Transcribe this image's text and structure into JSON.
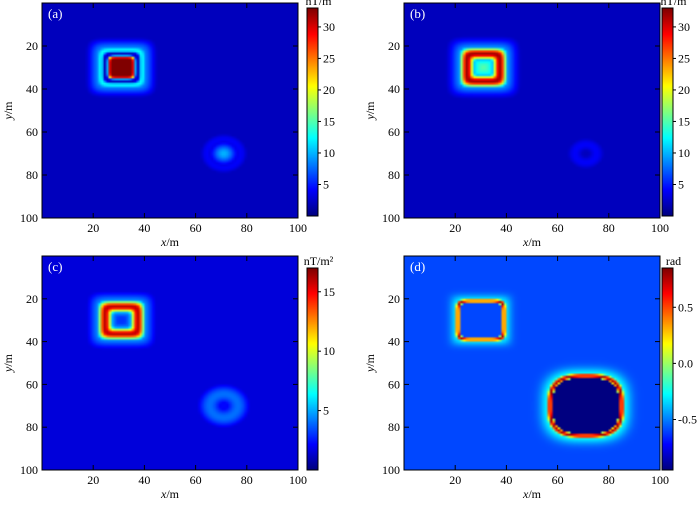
{
  "chart_data": [
    {
      "panel": "(a)",
      "type": "heatmap",
      "xlabel": "x/m",
      "ylabel": "y/m",
      "xlim": [
        0,
        100
      ],
      "ylim": [
        0,
        100
      ],
      "x_ticks": [
        "20",
        "40",
        "60",
        "80",
        "100"
      ],
      "y_ticks": [
        "20",
        "40",
        "60",
        "80",
        "100"
      ],
      "colorbar": {
        "unit": "nT/m",
        "min": 0,
        "max": 33,
        "ticks": [
          5,
          10,
          15,
          20,
          25,
          30
        ]
      },
      "background_value": 2,
      "anomalies": [
        {
          "kind": "filled_square_ring",
          "center_x": 31,
          "center_y": 30,
          "half_size": 8,
          "peak": 33,
          "inner_value": 33,
          "ring_value": 28
        },
        {
          "kind": "blob",
          "center_x": 71,
          "center_y": 70,
          "radius": 6,
          "peak": 10
        }
      ]
    },
    {
      "panel": "(b)",
      "type": "heatmap",
      "xlabel": "x/m",
      "ylabel": "y/m",
      "xlim": [
        0,
        100
      ],
      "ylim": [
        0,
        100
      ],
      "x_ticks": [
        "20",
        "40",
        "60",
        "80",
        "100"
      ],
      "y_ticks": [
        "20",
        "40",
        "60",
        "80",
        "100"
      ],
      "colorbar": {
        "unit": "nT/m",
        "min": 0,
        "max": 33,
        "ticks": [
          5,
          10,
          15,
          20,
          25,
          30
        ]
      },
      "background_value": 2,
      "anomalies": [
        {
          "kind": "square_ring",
          "center_x": 31,
          "center_y": 30,
          "half_size": 8,
          "peak": 32,
          "inner_value": 15
        },
        {
          "kind": "faint_ring",
          "center_x": 71,
          "center_y": 70,
          "radius": 7,
          "peak": 4
        }
      ]
    },
    {
      "panel": "(c)",
      "type": "heatmap",
      "xlabel": "x/m",
      "ylabel": "y/m",
      "xlim": [
        0,
        100
      ],
      "ylim": [
        0,
        100
      ],
      "x_ticks": [
        "20",
        "40",
        "60",
        "80",
        "100"
      ],
      "y_ticks": [
        "20",
        "40",
        "60",
        "80",
        "100"
      ],
      "colorbar": {
        "unit": "nT/m²",
        "min": 0,
        "max": 17,
        "ticks": [
          5,
          10,
          15
        ]
      },
      "background_value": 1.5,
      "anomalies": [
        {
          "kind": "square_ring",
          "center_x": 31,
          "center_y": 30,
          "half_size": 8,
          "peak": 16,
          "inner_value": 3
        },
        {
          "kind": "soft_ring",
          "center_x": 71,
          "center_y": 70,
          "radius": 10,
          "peak": 4
        }
      ]
    },
    {
      "panel": "(d)",
      "type": "heatmap",
      "xlabel": "x/m",
      "ylabel": "y/m",
      "xlim": [
        0,
        100
      ],
      "ylim": [
        0,
        100
      ],
      "x_ticks": [
        "20",
        "40",
        "60",
        "80",
        "100"
      ],
      "y_ticks": [
        "20",
        "40",
        "60",
        "80",
        "100"
      ],
      "colorbar": {
        "unit": "rad",
        "min": -0.95,
        "max": 0.85,
        "ticks": [
          -0.5,
          0.0,
          0.5
        ],
        "tick_labels": [
          "-0.5",
          "0.0",
          "0.5"
        ]
      },
      "background_value": -0.6,
      "anomalies": [
        {
          "kind": "thin_square_ring",
          "center_x": 30,
          "center_y": 30,
          "half_size": 9,
          "peak": 0.8,
          "inner_value": -0.95
        },
        {
          "kind": "thin_rounded_ring",
          "center_x": 71,
          "center_y": 70,
          "half_size": 14,
          "peak": 0.8,
          "inner_value": -0.95
        }
      ]
    }
  ]
}
